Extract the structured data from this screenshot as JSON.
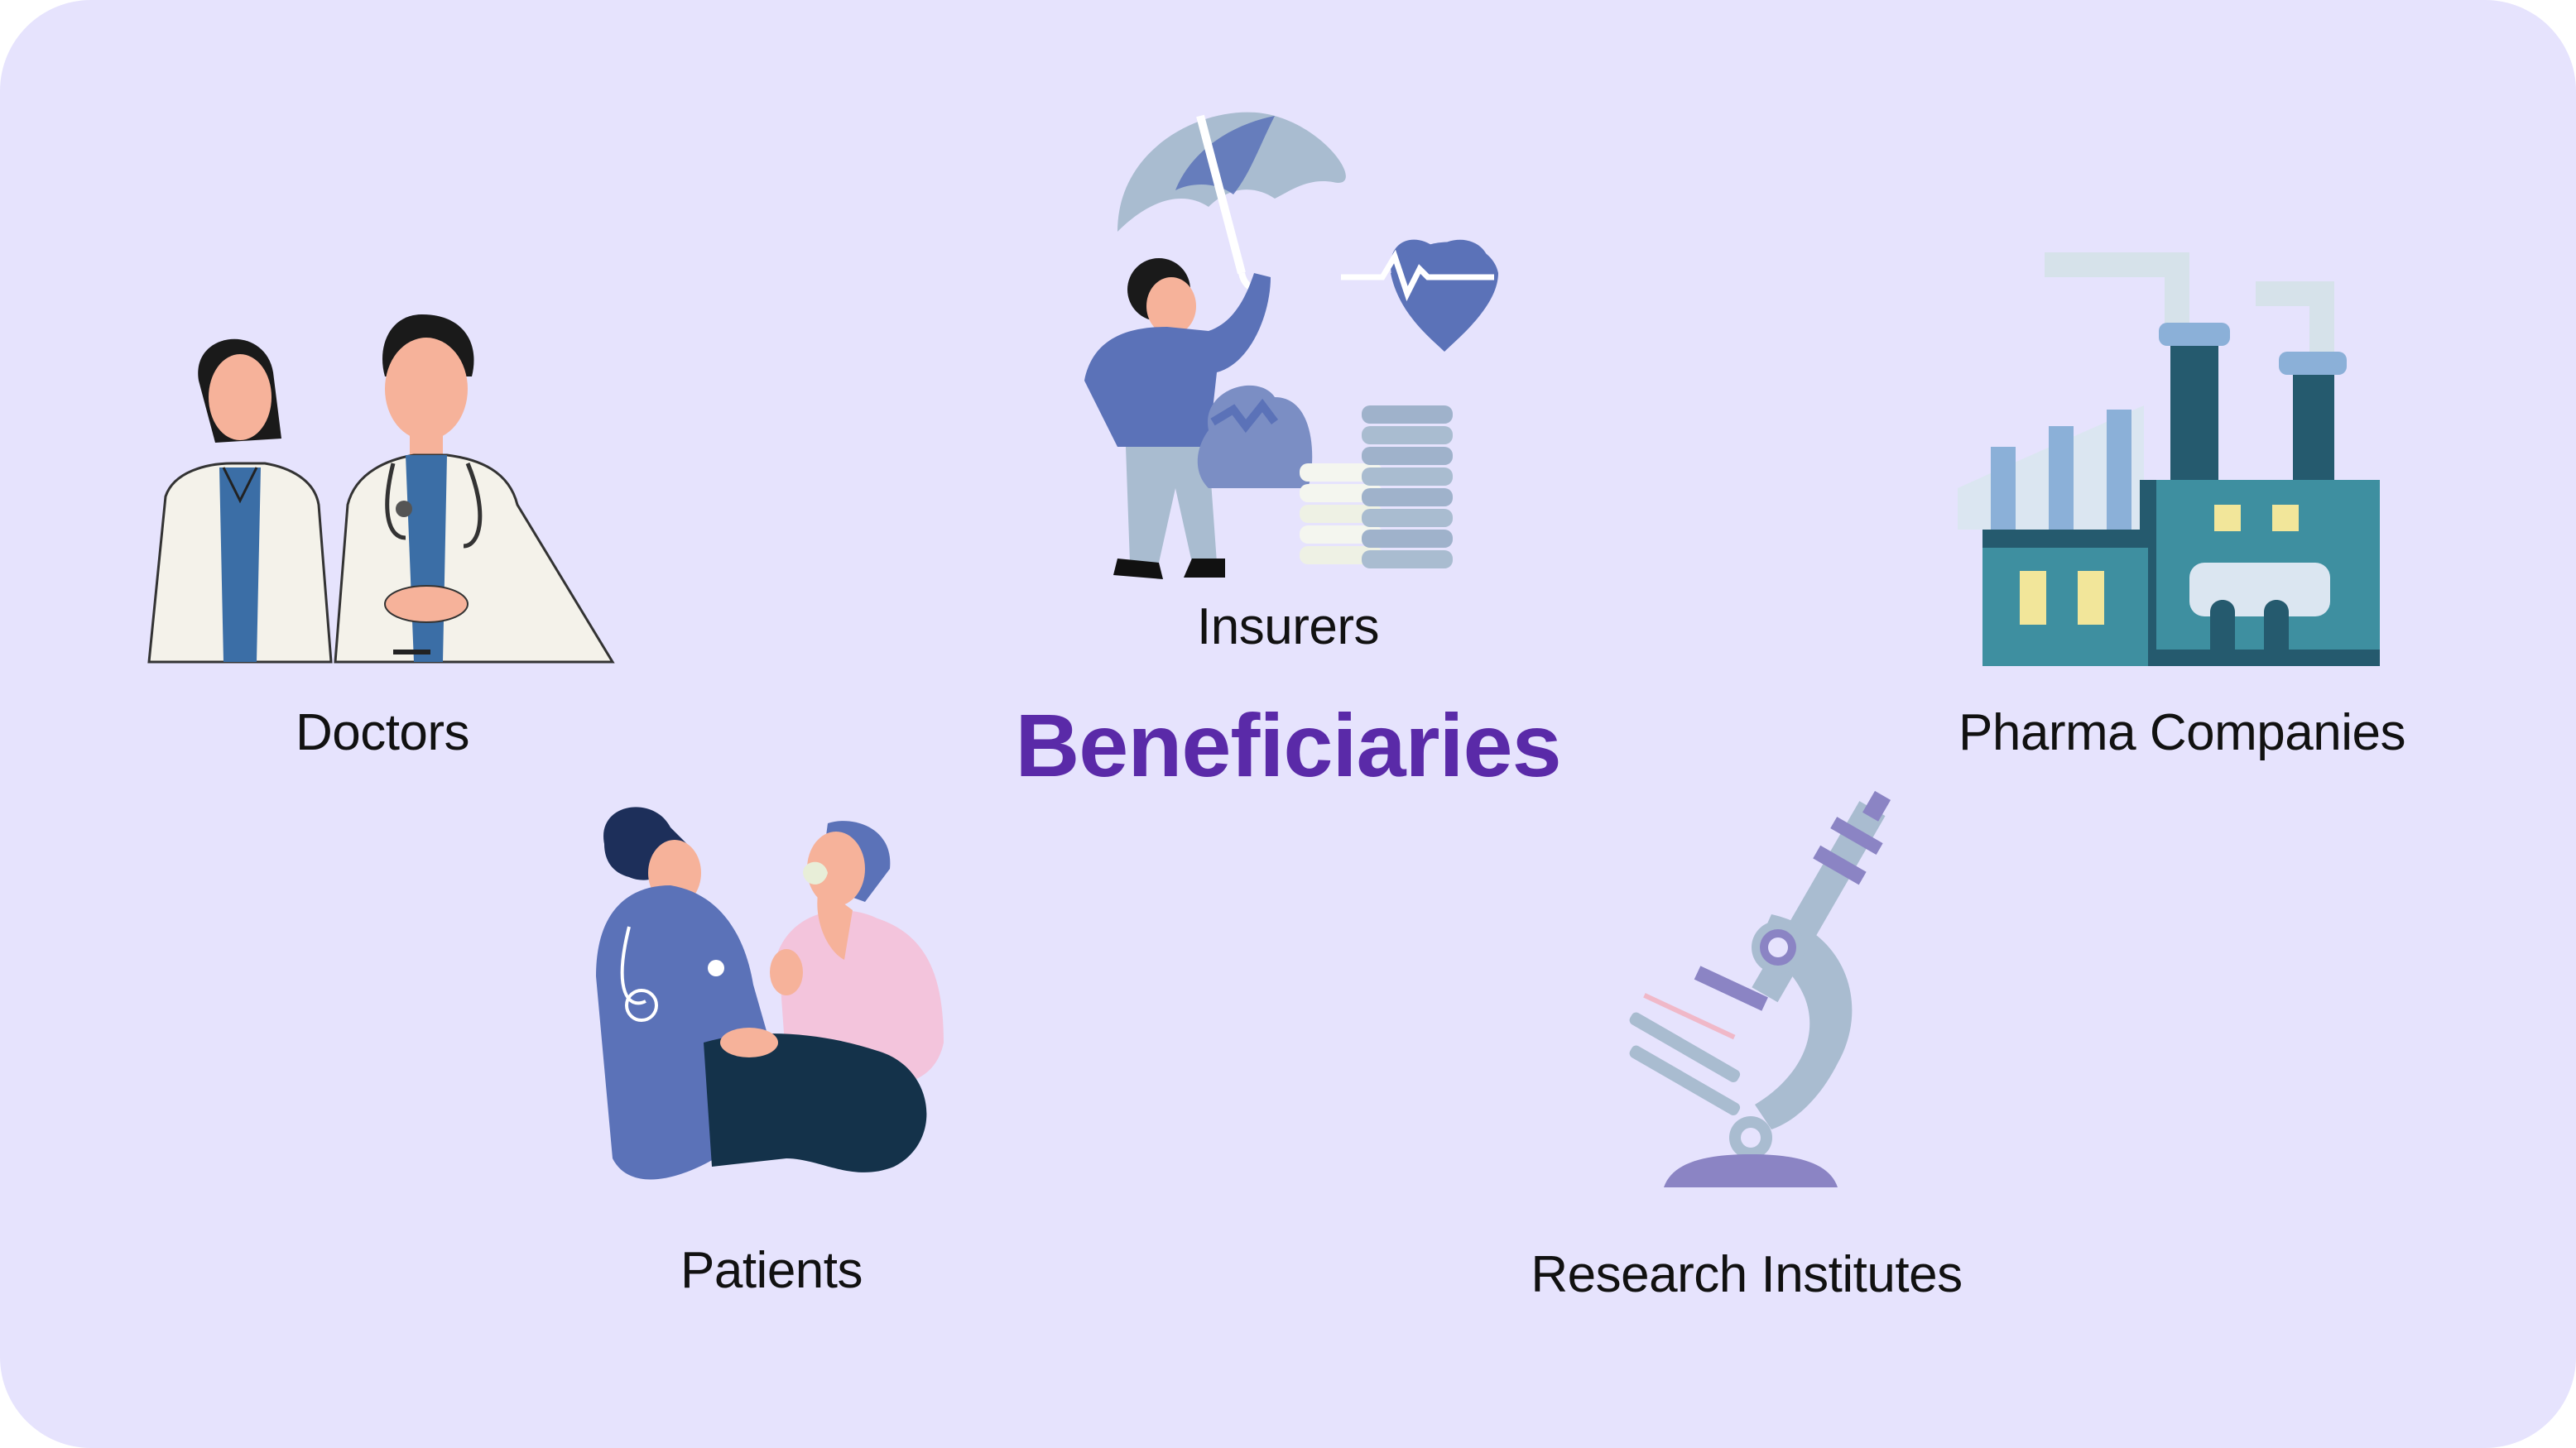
{
  "title": "Beneficiaries",
  "beneficiaries": {
    "doctors": "Doctors",
    "insurers": "Insurers",
    "pharma": "Pharma Companies",
    "patients": "Patients",
    "research": "Research Institutes"
  },
  "colors": {
    "background": "#e6e3fd",
    "title": "#5a2aa8",
    "label": "#111111",
    "primary_blue": "#5b72b8",
    "teal": "#3e8fa0",
    "light_gray_blue": "#a9bcd0",
    "lavender": "#8b84c4",
    "pink": "#f3c4dc"
  },
  "icons": {
    "doctors": "doctors-illustration-icon",
    "insurers": "insurance-illustration-icon",
    "pharma": "factory-illustration-icon",
    "patients": "patient-care-illustration-icon",
    "research": "microscope-illustration-icon"
  }
}
